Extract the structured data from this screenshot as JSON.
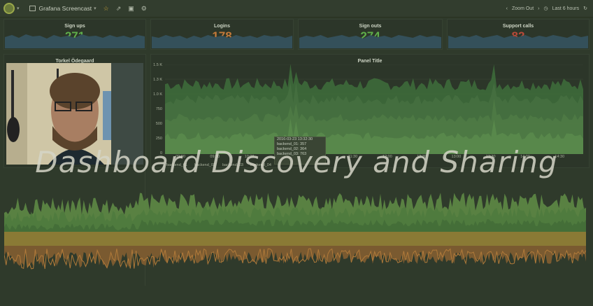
{
  "topbar": {
    "dashboard_title": "Grafana Screencast",
    "zoom_out_label": "Zoom Out",
    "time_range_label": "Last 6 hours"
  },
  "stats": [
    {
      "title": "Sign ups",
      "value": "271",
      "color": "#5fae4a"
    },
    {
      "title": "Logins",
      "value": "178",
      "color": "#c47a3a"
    },
    {
      "title": "Sign outs",
      "value": "274",
      "color": "#5fae4a"
    },
    {
      "title": "Support calls",
      "value": "82",
      "color": "#b84a3a"
    }
  ],
  "webcam_panel": {
    "title": "Torkel Ödegaard"
  },
  "graph_panel": {
    "title": "Panel Title",
    "y_ticks": [
      "1.5 K",
      "1.3 K",
      "1.0 K",
      "750",
      "500",
      "250",
      "0"
    ],
    "x_ticks": [
      "09:00",
      "09:30",
      "10:00",
      "10:30",
      "11:00",
      "11:30",
      "12:00",
      "12:30",
      "13:00",
      "13:30",
      "14:00",
      "14:30"
    ],
    "tooltip": {
      "time": "2016-03-23 13:32:30",
      "rows": [
        {
          "label": "backend_01:",
          "value": "357"
        },
        {
          "label": "backend_02:",
          "value": "364"
        },
        {
          "label": "backend_03:",
          "value": "763"
        }
      ]
    },
    "legend": [
      "backend_01",
      "backend_02",
      "backend_03",
      "backend_04"
    ]
  },
  "overlay": {
    "title": "Dashboard Discovery and Sharing"
  }
}
